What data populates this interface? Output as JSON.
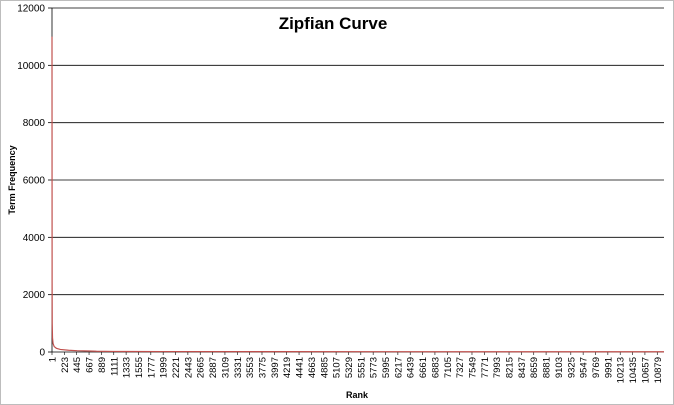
{
  "chart_data": {
    "type": "line",
    "title": "Zipfian Curve",
    "xlabel": "Rank",
    "ylabel": "Term Frequency",
    "ylim": [
      0,
      12000
    ],
    "yticks": [
      "0",
      "2000",
      "4000",
      "6000",
      "8000",
      "10000",
      "12000"
    ],
    "xticks": [
      "1",
      "223",
      "445",
      "667",
      "889",
      "1111",
      "1333",
      "1555",
      "1777",
      "1999",
      "2221",
      "2443",
      "2665",
      "2887",
      "3109",
      "3331",
      "3553",
      "3775",
      "3997",
      "4219",
      "4441",
      "4663",
      "4885",
      "5107",
      "5329",
      "5551",
      "5773",
      "5995",
      "6217",
      "6439",
      "6661",
      "6883",
      "7105",
      "7327",
      "7549",
      "7771",
      "7993",
      "8215",
      "8437",
      "8659",
      "8881",
      "9103",
      "9325",
      "9547",
      "9769",
      "9991",
      "10213",
      "10435",
      "10657",
      "10879"
    ],
    "x_max": 11000,
    "grid": true,
    "legend": "none",
    "line_color": "#c0504d",
    "series": [
      {
        "x": [
          1,
          2,
          3,
          5,
          10,
          20,
          40,
          80,
          150,
          300,
          450,
          667,
          800,
          1111,
          2000,
          4000,
          6000,
          8000,
          10000,
          11000
        ],
        "values": [
          11000,
          6000,
          2400,
          1000,
          500,
          300,
          190,
          130,
          90,
          60,
          45,
          35,
          25,
          20,
          15,
          12,
          10,
          9,
          8,
          8
        ]
      }
    ]
  }
}
